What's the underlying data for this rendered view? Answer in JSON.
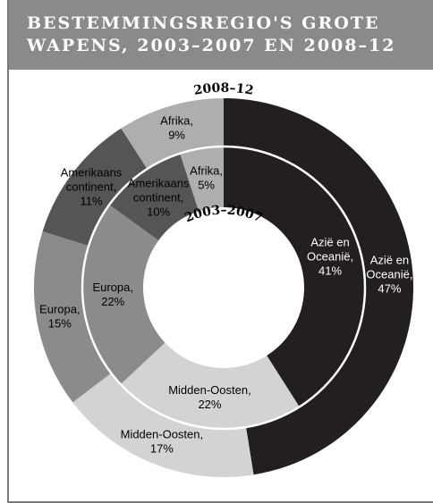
{
  "title": "BESTEMMINGSREGIO'S GROTE WAPENS, 2003–2007 EN 2008–12",
  "chart_data": {
    "type": "pie",
    "subtype": "nested-donut",
    "series": [
      {
        "name": "2008–12",
        "ring": "outer",
        "categories": [
          "Azië en Oceanië",
          "Midden-Oosten",
          "Europa",
          "Amerikaans continent",
          "Afrika"
        ],
        "values": [
          47,
          17,
          15,
          11,
          9
        ],
        "labels": [
          "Azië en\nOceanië,\n47%",
          "Midden-Oosten,\n17%",
          "Europa,\n15%",
          "Amerikaans\ncontinent,\n11%",
          "Afrika,\n9%"
        ]
      },
      {
        "name": "2003–2007",
        "ring": "inner",
        "categories": [
          "Azië en Oceanië",
          "Midden-Oosten",
          "Europa",
          "Amerikaans continent",
          "Afrika"
        ],
        "values": [
          41,
          22,
          22,
          10,
          5
        ],
        "labels": [
          "Azië en\nOceanië,\n41%",
          "Midden-Oosten,\n22%",
          "Europa,\n22%",
          "Amerikaans\ncontinent,\n10%",
          "Afrika,\n5%"
        ]
      }
    ],
    "colors": {
      "Azië en Oceanië": "#231f20",
      "Midden-Oosten": "#d3d3d3",
      "Europa": "#8b8b8b",
      "Amerikaans continent": "#555555",
      "Afrika": "#aeaeae"
    },
    "label_colors": {
      "Azië en Oceanië": "#ffffff",
      "Midden-Oosten": "#000000",
      "Europa": "#000000",
      "Amerikaans continent": "#000000",
      "Afrika": "#000000"
    },
    "start": "top",
    "direction": "clockwise"
  }
}
